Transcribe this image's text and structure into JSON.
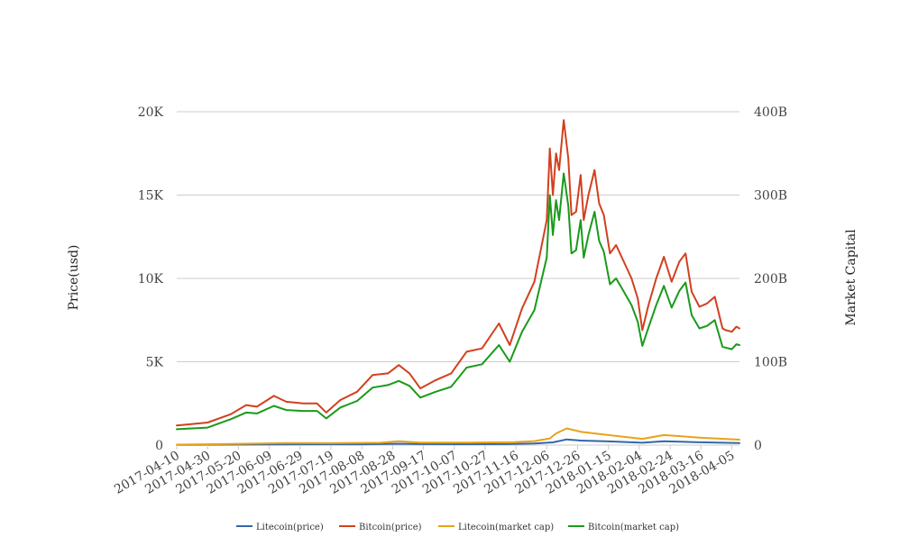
{
  "chart_data": {
    "type": "line",
    "title": "",
    "xlabel": "",
    "ylabel_left": "Price(usd)",
    "ylabel_right": "Market Capital",
    "x_ticks": [
      "2017-04-10",
      "2017-04-30",
      "2017-05-20",
      "2017-06-09",
      "2017-06-29",
      "2017-07-19",
      "2017-08-08",
      "2017-08-28",
      "2017-09-17",
      "2017-10-07",
      "2017-10-27",
      "2017-11-16",
      "2017-12-06",
      "2017-12-26",
      "2018-01-15",
      "2018-02-04",
      "2018-02-24",
      "2018-03-16",
      "2018-04-05"
    ],
    "y_left": {
      "ticks": [
        "0",
        "5K",
        "10K",
        "15K",
        "20K"
      ],
      "range": [
        0,
        20000
      ]
    },
    "y_right": {
      "ticks": [
        "0",
        "100B",
        "200B",
        "300B",
        "400B"
      ],
      "range": [
        0,
        400000000000
      ]
    },
    "grid": true,
    "legend_position": "bottom",
    "x_range": [
      "2017-04-10",
      "2018-04-10"
    ],
    "series": [
      {
        "name": "Litecoin(price)",
        "axis": "left",
        "color": "#3366aa",
        "x": [
          "2017-04-10",
          "2017-05-10",
          "2017-06-10",
          "2017-07-10",
          "2017-08-10",
          "2017-09-01",
          "2017-09-15",
          "2017-10-10",
          "2017-11-10",
          "2017-11-28",
          "2017-12-10",
          "2017-12-19",
          "2017-12-28",
          "2018-01-15",
          "2018-02-06",
          "2018-02-20",
          "2018-03-15",
          "2018-04-10"
        ],
        "y": [
          10,
          28,
          45,
          50,
          48,
          82,
          58,
          55,
          62,
          90,
          160,
          340,
          270,
          220,
          140,
          230,
          170,
          118
        ]
      },
      {
        "name": "Bitcoin(price)",
        "axis": "left",
        "color": "#d2401f",
        "x": [
          "2017-04-10",
          "2017-04-30",
          "2017-05-15",
          "2017-05-25",
          "2017-06-01",
          "2017-06-12",
          "2017-06-20",
          "2017-07-01",
          "2017-07-10",
          "2017-07-16",
          "2017-07-25",
          "2017-08-05",
          "2017-08-15",
          "2017-08-25",
          "2017-09-01",
          "2017-09-08",
          "2017-09-15",
          "2017-09-25",
          "2017-10-05",
          "2017-10-15",
          "2017-10-25",
          "2017-11-05",
          "2017-11-12",
          "2017-11-20",
          "2017-11-28",
          "2017-12-06",
          "2017-12-08",
          "2017-12-10",
          "2017-12-12",
          "2017-12-14",
          "2017-12-17",
          "2017-12-20",
          "2017-12-22",
          "2017-12-25",
          "2017-12-28",
          "2017-12-30",
          "2018-01-02",
          "2018-01-06",
          "2018-01-09",
          "2018-01-12",
          "2018-01-16",
          "2018-01-20",
          "2018-01-25",
          "2018-01-30",
          "2018-02-03",
          "2018-02-06",
          "2018-02-10",
          "2018-02-15",
          "2018-02-20",
          "2018-02-25",
          "2018-03-02",
          "2018-03-06",
          "2018-03-10",
          "2018-03-15",
          "2018-03-20",
          "2018-03-25",
          "2018-03-30",
          "2018-04-01",
          "2018-04-05",
          "2018-04-08",
          "2018-04-10"
        ],
        "y": [
          1180,
          1350,
          1850,
          2400,
          2300,
          2950,
          2600,
          2500,
          2500,
          1950,
          2700,
          3200,
          4200,
          4300,
          4800,
          4300,
          3400,
          3900,
          4300,
          5600,
          5800,
          7300,
          6000,
          8200,
          9800,
          13500,
          17800,
          15000,
          17500,
          16500,
          19500,
          17200,
          13800,
          14000,
          16200,
          13500,
          15000,
          16500,
          14500,
          13800,
          11500,
          12000,
          11000,
          10000,
          8800,
          6900,
          8400,
          10000,
          11300,
          9800,
          11000,
          11500,
          9200,
          8300,
          8500,
          8900,
          7000,
          6900,
          6800,
          7100,
          7000
        ]
      },
      {
        "name": "Litecoin(market cap)",
        "axis": "right",
        "color": "#e8a317",
        "x": [
          "2017-04-10",
          "2017-05-20",
          "2017-06-20",
          "2017-07-20",
          "2017-08-20",
          "2017-09-01",
          "2017-09-15",
          "2017-10-15",
          "2017-11-15",
          "2017-11-28",
          "2017-12-08",
          "2017-12-12",
          "2017-12-19",
          "2017-12-28",
          "2018-01-15",
          "2018-02-06",
          "2018-02-20",
          "2018-03-15",
          "2018-04-10"
        ],
        "y": [
          500000000,
          1500000000,
          2500000000,
          2300000000,
          2800000000,
          4500000000,
          3000000000,
          2900000000,
          3500000000,
          4800000000,
          8000000000,
          14000000000,
          20000000000,
          16000000000,
          12000000000,
          7500000000,
          12000000000,
          9000000000,
          6500000000
        ]
      },
      {
        "name": "Bitcoin(market cap)",
        "axis": "right",
        "color": "#1a9a1a",
        "x": [
          "2017-04-10",
          "2017-04-30",
          "2017-05-15",
          "2017-05-25",
          "2017-06-01",
          "2017-06-12",
          "2017-06-20",
          "2017-07-01",
          "2017-07-10",
          "2017-07-16",
          "2017-07-25",
          "2017-08-05",
          "2017-08-15",
          "2017-08-25",
          "2017-09-01",
          "2017-09-08",
          "2017-09-15",
          "2017-09-25",
          "2017-10-05",
          "2017-10-15",
          "2017-10-25",
          "2017-11-05",
          "2017-11-12",
          "2017-11-20",
          "2017-11-28",
          "2017-12-06",
          "2017-12-08",
          "2017-12-10",
          "2017-12-12",
          "2017-12-14",
          "2017-12-17",
          "2017-12-20",
          "2017-12-22",
          "2017-12-25",
          "2017-12-28",
          "2017-12-30",
          "2018-01-02",
          "2018-01-06",
          "2018-01-09",
          "2018-01-12",
          "2018-01-16",
          "2018-01-20",
          "2018-01-25",
          "2018-01-30",
          "2018-02-03",
          "2018-02-06",
          "2018-02-10",
          "2018-02-15",
          "2018-02-20",
          "2018-02-25",
          "2018-03-02",
          "2018-03-06",
          "2018-03-10",
          "2018-03-15",
          "2018-03-20",
          "2018-03-25",
          "2018-03-30",
          "2018-04-01",
          "2018-04-05",
          "2018-04-08",
          "2018-04-10"
        ],
        "y": [
          19000000000,
          21000000000,
          31000000000,
          39000000000,
          38000000000,
          47000000000,
          42000000000,
          41000000000,
          41000000000,
          32000000000,
          45000000000,
          53000000000,
          69000000000,
          72000000000,
          77000000000,
          71000000000,
          57000000000,
          64000000000,
          70000000000,
          93000000000,
          97000000000,
          120000000000,
          100000000000,
          136000000000,
          162000000000,
          225000000000,
          300000000000,
          252000000000,
          294000000000,
          270000000000,
          326000000000,
          287000000000,
          230000000000,
          234000000000,
          270000000000,
          225000000000,
          252000000000,
          280000000000,
          245000000000,
          232000000000,
          193000000000,
          200000000000,
          184000000000,
          168000000000,
          148000000000,
          119000000000,
          141000000000,
          168000000000,
          191000000000,
          165000000000,
          185000000000,
          195000000000,
          156000000000,
          140000000000,
          143000000000,
          150000000000,
          118000000000,
          117000000000,
          115000000000,
          121000000000,
          120000000000
        ]
      }
    ]
  }
}
